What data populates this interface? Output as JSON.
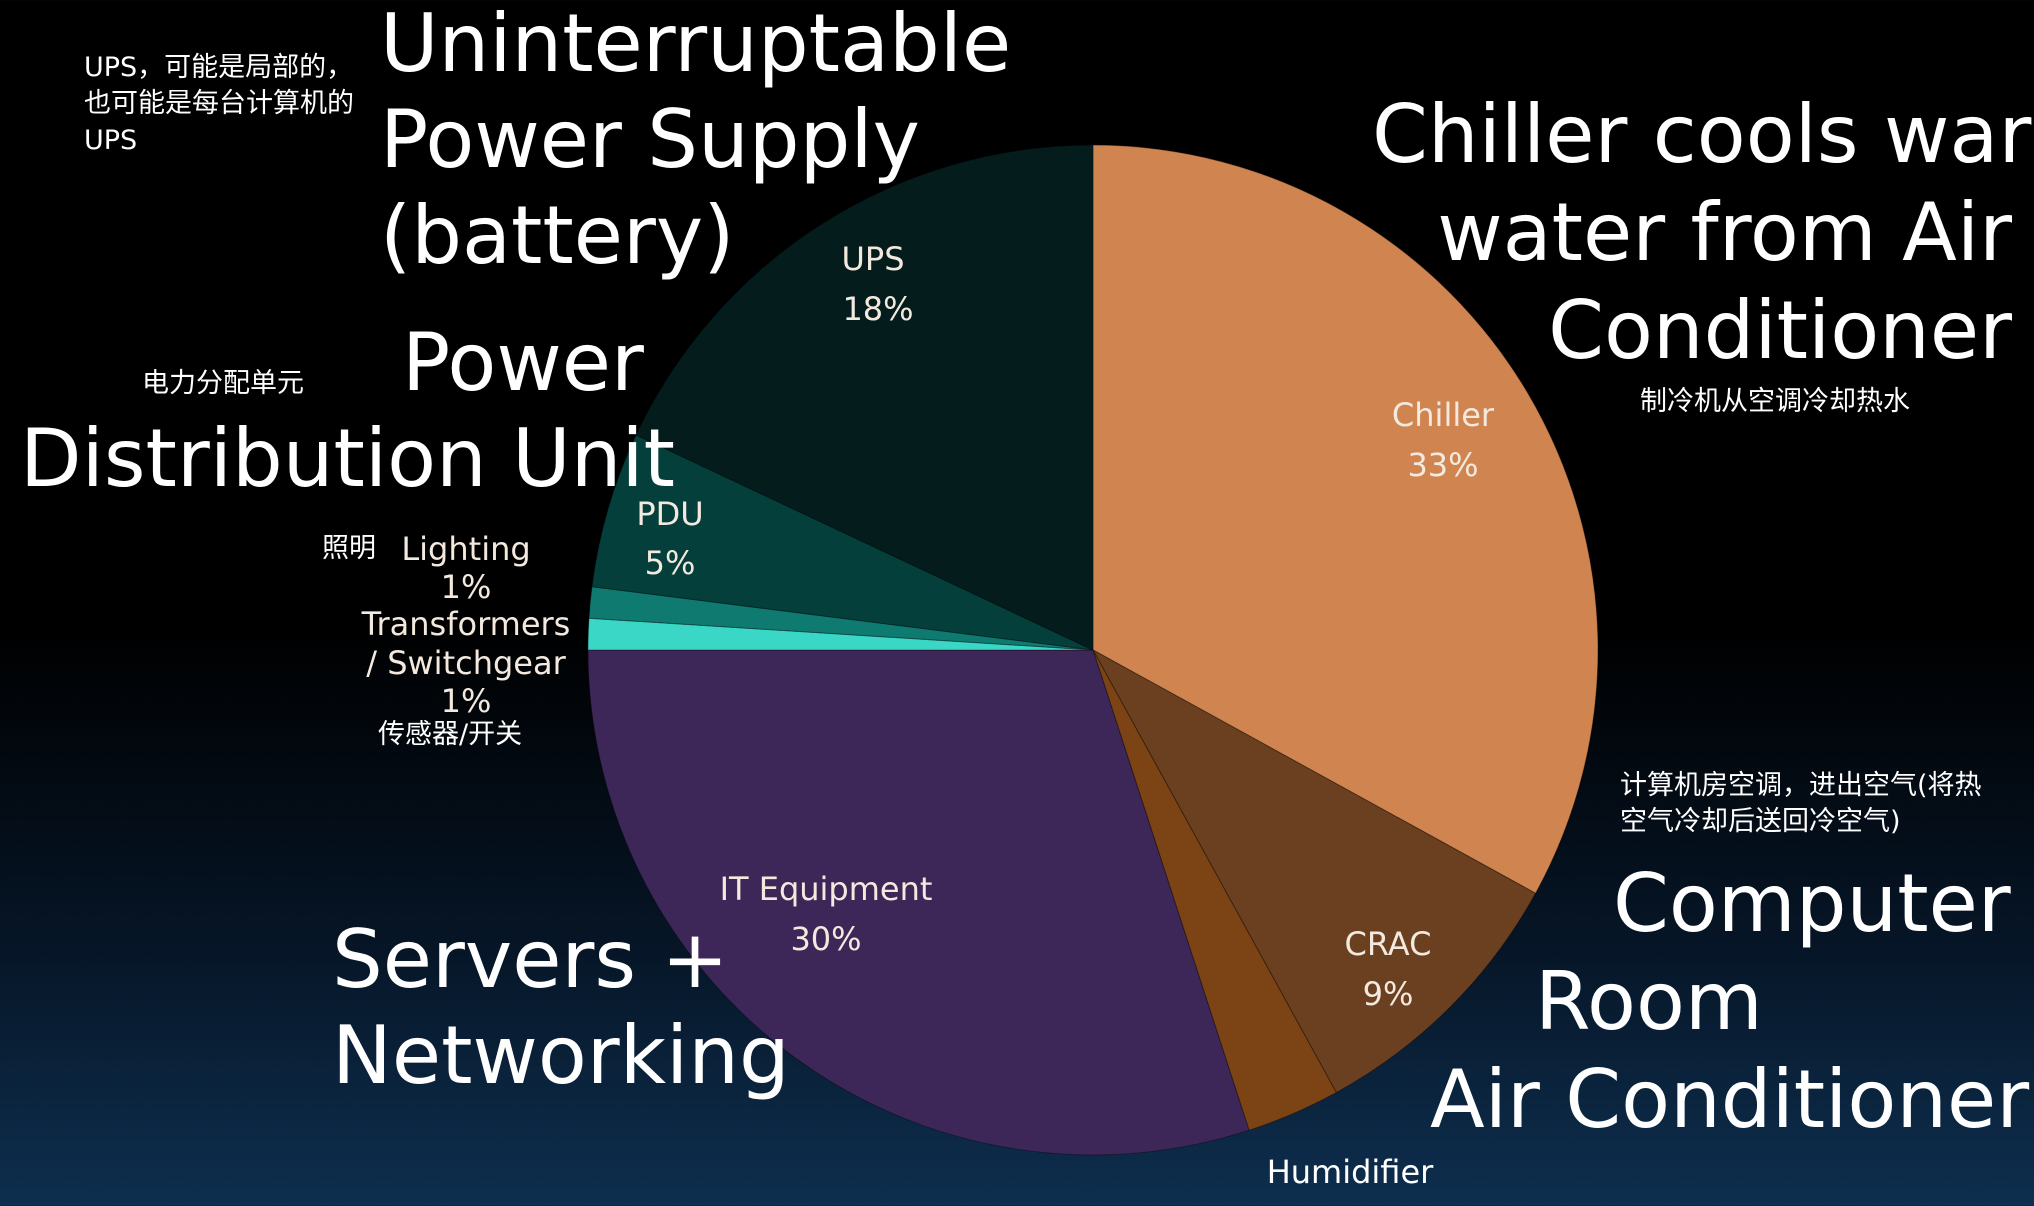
{
  "chart_data": {
    "type": "pie",
    "title": "",
    "slices": [
      {
        "label": "Chiller",
        "value": 33,
        "value_label": "33%",
        "color": "#d08450"
      },
      {
        "label": "CRAC",
        "value": 9,
        "value_label": "9%",
        "color": "#6b4020"
      },
      {
        "label": "Humidifier",
        "value": 3,
        "value_label": "",
        "color": "#7c4315"
      },
      {
        "label": "IT Equipment",
        "value": 30,
        "value_label": "30%",
        "color": "#3d2758"
      },
      {
        "label": "Transformers / Switchgear",
        "value": 1,
        "value_label": "1%",
        "color": "#3ad6c6"
      },
      {
        "label": "Lighting",
        "value": 1,
        "value_label": "1%",
        "color": "#0f7a70"
      },
      {
        "label": "PDU",
        "value": 5,
        "value_label": "5%",
        "color": "#053f3b"
      },
      {
        "label": "UPS",
        "value": 18,
        "value_label": "18%",
        "color": "#041d1c"
      }
    ],
    "label_text": {
      "transformers_line1": "Transformers",
      "transformers_line2": "/ Switchgear"
    }
  },
  "annotations": {
    "ups_title": [
      "Uninterruptable",
      "Power Supply",
      "(battery)"
    ],
    "ups_note": [
      "UPS，可能是局部的，",
      "也可能是每台计算机的",
      "UPS"
    ],
    "pdu_title_line1": "Power",
    "pdu_title_line2": "Distribution Unit",
    "pdu_note": "电力分配单元",
    "lighting_note": "照明",
    "transformers_note": "传感器/开关",
    "chiller_title": [
      "Chiller cools warm",
      "water from Air",
      "Conditioner"
    ],
    "chiller_note": "制冷机从空调冷却热水",
    "crac_note": [
      "计算机房空调，进出空气(将热",
      "空气冷却后送回冷空气)"
    ],
    "crac_title": [
      "Computer",
      "Room",
      "Air Conditioner"
    ],
    "it_title": [
      "Servers +",
      "Networking"
    ]
  }
}
